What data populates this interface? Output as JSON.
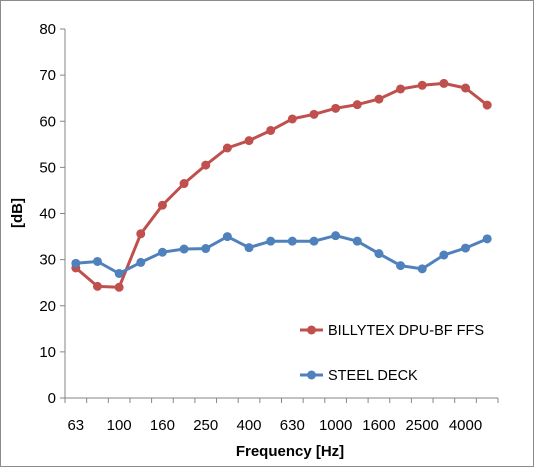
{
  "chart_data": {
    "type": "line",
    "x_tick_labels": [
      "63",
      "100",
      "160",
      "250",
      "400",
      "630",
      "1000",
      "1600",
      "2500",
      "4000"
    ],
    "x_points": [
      "63",
      "80",
      "100",
      "125",
      "160",
      "200",
      "250",
      "315",
      "400",
      "500",
      "630",
      "800",
      "1000",
      "1250",
      "1600",
      "2000",
      "2500",
      "3150",
      "4000",
      "5000"
    ],
    "xlabel": "Frequency [Hz]",
    "ylabel": "[dB]",
    "ylim": [
      0,
      80
    ],
    "y_ticks": [
      0,
      10,
      20,
      30,
      40,
      50,
      60,
      70,
      80
    ],
    "grid": false,
    "legend_position": "bottom-right",
    "series": [
      {
        "name": "BILLYTEX DPU-BF FFS",
        "color": "#c0504d",
        "values": [
          28.2,
          24.2,
          24.0,
          35.6,
          41.8,
          46.5,
          50.5,
          54.2,
          55.8,
          58.0,
          60.5,
          61.5,
          62.8,
          63.6,
          64.8,
          67.0,
          67.8,
          68.2,
          67.2,
          63.5
        ]
      },
      {
        "name": "STEEL DECK",
        "color": "#4f81bd",
        "values": [
          29.2,
          29.6,
          27.0,
          29.4,
          31.6,
          32.3,
          32.4,
          35.0,
          32.6,
          34.0,
          34.0,
          34.0,
          35.2,
          34.0,
          31.3,
          28.7,
          28.0,
          31.0,
          32.5,
          34.5
        ]
      }
    ]
  }
}
